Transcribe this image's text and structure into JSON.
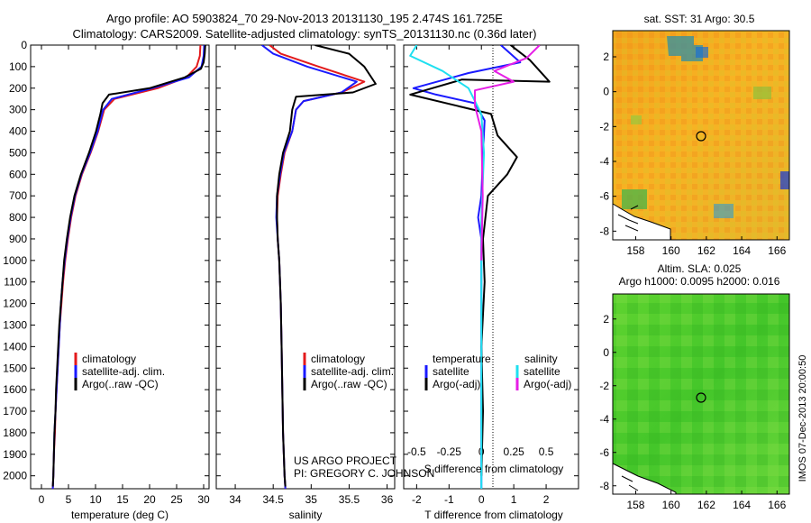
{
  "header": {
    "title_line1": "Argo profile: AO 5903824_70 29-Nov-2013 20131130_195 2.474S 161.725E",
    "title_line2": "Climatology: CARS2009. Satellite-adjusted climatology: synTS_20131130.nc (0.36d later)"
  },
  "colors": {
    "climatology": "#e31a1c",
    "satellite": "#1a1aff",
    "argo": "#000000",
    "sat_salinity": "#1fe0f0",
    "argo_salinity": "#e61ee6"
  },
  "chart_data": [
    {
      "type": "line",
      "id": "temperature",
      "xlabel": "temperature (deg C)",
      "xlim": [
        -2,
        31
      ],
      "xticks": [
        0,
        5,
        10,
        15,
        20,
        25,
        30
      ],
      "ylim": [
        2060,
        0
      ],
      "yticks": [
        0,
        100,
        200,
        300,
        400,
        500,
        600,
        700,
        800,
        900,
        1000,
        1100,
        1200,
        1300,
        1400,
        1500,
        1600,
        1700,
        1800,
        1900,
        2000
      ],
      "legend": [
        "climatology",
        "satellite-adj. clim.",
        "Argo(..raw -QC)"
      ],
      "series": [
        {
          "name": "climatology",
          "color": "#e31a1c",
          "points": [
            [
              29.4,
              0
            ],
            [
              29.3,
              50
            ],
            [
              28.7,
              100
            ],
            [
              26.8,
              150
            ],
            [
              21.5,
              200
            ],
            [
              13.5,
              250
            ],
            [
              11.6,
              300
            ],
            [
              10.5,
              400
            ],
            [
              9.1,
              500
            ],
            [
              7.5,
              600
            ],
            [
              6.3,
              700
            ],
            [
              5.5,
              800
            ],
            [
              4.9,
              900
            ],
            [
              4.4,
              1000
            ],
            [
              4.0,
              1100
            ],
            [
              3.7,
              1200
            ],
            [
              3.4,
              1300
            ],
            [
              3.2,
              1400
            ],
            [
              3.0,
              1500
            ],
            [
              2.8,
              1600
            ],
            [
              2.6,
              1700
            ],
            [
              2.5,
              1800
            ],
            [
              2.3,
              1900
            ],
            [
              2.2,
              2000
            ],
            [
              2.1,
              2060
            ]
          ]
        },
        {
          "name": "satellite-adj. clim.",
          "color": "#1a1aff",
          "points": [
            [
              30.1,
              0
            ],
            [
              30.0,
              50
            ],
            [
              29.6,
              100
            ],
            [
              27.3,
              150
            ],
            [
              20.5,
              200
            ],
            [
              13.0,
              250
            ],
            [
              11.4,
              300
            ],
            [
              10.4,
              400
            ],
            [
              9.0,
              500
            ],
            [
              7.4,
              600
            ],
            [
              6.2,
              700
            ],
            [
              5.4,
              800
            ],
            [
              4.8,
              900
            ],
            [
              4.3,
              1000
            ],
            [
              3.9,
              1100
            ],
            [
              3.6,
              1200
            ],
            [
              3.4,
              1300
            ],
            [
              3.2,
              1400
            ],
            [
              3.0,
              1500
            ],
            [
              2.8,
              1600
            ],
            [
              2.6,
              1700
            ],
            [
              2.4,
              1800
            ],
            [
              2.3,
              1900
            ],
            [
              2.2,
              2000
            ],
            [
              2.1,
              2060
            ]
          ]
        },
        {
          "name": "Argo(..raw -QC)",
          "color": "#000000",
          "points": [
            [
              30.3,
              0
            ],
            [
              30.2,
              40
            ],
            [
              30.0,
              80
            ],
            [
              29.5,
              110
            ],
            [
              26.5,
              150
            ],
            [
              20.0,
              200
            ],
            [
              12.5,
              230
            ],
            [
              11.3,
              270
            ],
            [
              10.9,
              320
            ],
            [
              10.1,
              400
            ],
            [
              8.8,
              500
            ],
            [
              7.3,
              600
            ],
            [
              6.1,
              700
            ],
            [
              5.3,
              800
            ],
            [
              4.7,
              900
            ],
            [
              4.2,
              1000
            ],
            [
              3.9,
              1100
            ],
            [
              3.6,
              1200
            ],
            [
              3.3,
              1300
            ],
            [
              3.1,
              1400
            ],
            [
              2.9,
              1500
            ],
            [
              2.7,
              1600
            ],
            [
              2.6,
              1700
            ],
            [
              2.4,
              1800
            ],
            [
              2.3,
              1900
            ],
            [
              2.2,
              2000
            ],
            [
              2.1,
              2050
            ]
          ]
        }
      ]
    },
    {
      "type": "line",
      "id": "salinity",
      "xlabel": "salinity",
      "xlim": [
        33.75,
        36.1
      ],
      "xticks": [
        34,
        34.5,
        35,
        35.5,
        36
      ],
      "xtick_labels": [
        "34",
        "34.5",
        "35",
        "35.5",
        "36"
      ],
      "ylim": [
        2060,
        0
      ],
      "legend": [
        "climatology",
        "satellite-adj. clim.",
        "Argo(..raw -QC)"
      ],
      "annotation": [
        "US ARGO PROJECT",
        "PI: GREGORY C. JOHNSON"
      ],
      "series": [
        {
          "name": "climatology",
          "color": "#e31a1c",
          "points": [
            [
              34.45,
              0
            ],
            [
              34.6,
              40
            ],
            [
              35.1,
              100
            ],
            [
              35.7,
              170
            ],
            [
              35.4,
              220
            ],
            [
              34.9,
              260
            ],
            [
              34.8,
              300
            ],
            [
              34.75,
              400
            ],
            [
              34.65,
              500
            ],
            [
              34.6,
              600
            ],
            [
              34.56,
              700
            ],
            [
              34.55,
              800
            ],
            [
              34.56,
              900
            ],
            [
              34.58,
              1000
            ],
            [
              34.6,
              1200
            ],
            [
              34.61,
              1400
            ],
            [
              34.62,
              1600
            ],
            [
              34.63,
              1800
            ],
            [
              34.65,
              2000
            ],
            [
              34.66,
              2060
            ]
          ]
        },
        {
          "name": "satellite-adj. clim.",
          "color": "#1a1aff",
          "points": [
            [
              34.35,
              0
            ],
            [
              34.5,
              40
            ],
            [
              34.95,
              100
            ],
            [
              35.6,
              170
            ],
            [
              35.4,
              220
            ],
            [
              34.9,
              260
            ],
            [
              34.8,
              300
            ],
            [
              34.75,
              400
            ],
            [
              34.64,
              500
            ],
            [
              34.59,
              600
            ],
            [
              34.55,
              700
            ],
            [
              34.54,
              800
            ],
            [
              34.56,
              900
            ],
            [
              34.58,
              1000
            ],
            [
              34.6,
              1200
            ],
            [
              34.61,
              1400
            ],
            [
              34.62,
              1600
            ],
            [
              34.63,
              1800
            ],
            [
              34.65,
              2000
            ],
            [
              34.66,
              2060
            ]
          ]
        },
        {
          "name": "Argo(..raw -QC)",
          "color": "#000000",
          "points": [
            [
              35.05,
              0
            ],
            [
              35.5,
              40
            ],
            [
              35.7,
              100
            ],
            [
              35.85,
              180
            ],
            [
              35.55,
              220
            ],
            [
              34.8,
              240
            ],
            [
              34.75,
              300
            ],
            [
              34.72,
              400
            ],
            [
              34.63,
              500
            ],
            [
              34.58,
              600
            ],
            [
              34.55,
              700
            ],
            [
              34.55,
              800
            ],
            [
              34.56,
              900
            ],
            [
              34.58,
              1000
            ],
            [
              34.6,
              1200
            ],
            [
              34.61,
              1400
            ],
            [
              34.62,
              1600
            ],
            [
              34.63,
              1800
            ],
            [
              34.65,
              2000
            ],
            [
              34.66,
              2050
            ]
          ]
        }
      ]
    },
    {
      "type": "line",
      "id": "difference",
      "xlabel_top": "S difference from climatology",
      "xlabel": "T difference from climatology",
      "xlim_T": [
        -2.4,
        3.0
      ],
      "xticks_T": [
        -2,
        -1,
        0,
        1,
        2
      ],
      "xlim_S": [
        -0.6,
        0.75
      ],
      "xticks_S": [
        -0.5,
        -0.25,
        0,
        0.25,
        0.5
      ],
      "xtick_labels_S": [
        "-0.5",
        "-0.25",
        "0",
        "0.25",
        "0.5"
      ],
      "ylim": [
        2060,
        0
      ],
      "legend_temperature": [
        "temperature",
        "satellite",
        "Argo(-adj)"
      ],
      "legend_salinity": [
        "salinity",
        "satellite",
        "Argo(-adj)"
      ],
      "series": [
        {
          "name": "temperature satellite",
          "axis": "T",
          "color": "#1a1aff",
          "points": [
            [
              0.6,
              0
            ],
            [
              1.2,
              80
            ],
            [
              -0.4,
              130
            ],
            [
              -2.1,
              200
            ],
            [
              -1.4,
              230
            ],
            [
              -0.2,
              270
            ],
            [
              0.1,
              350
            ],
            [
              0.05,
              500
            ],
            [
              0.0,
              700
            ],
            [
              -0.1,
              800
            ],
            [
              0.0,
              900
            ],
            [
              0.0,
              1100
            ],
            [
              0.0,
              1400
            ],
            [
              0.0,
              1700
            ],
            [
              0.0,
              2000
            ],
            [
              0.0,
              2060
            ]
          ]
        },
        {
          "name": "temperature Argo(-adj)",
          "axis": "T",
          "color": "#000000",
          "points": [
            [
              0.9,
              0
            ],
            [
              1.5,
              70
            ],
            [
              2.1,
              170
            ],
            [
              -0.6,
              160
            ],
            [
              -2.2,
              230
            ],
            [
              0.3,
              320
            ],
            [
              0.5,
              420
            ],
            [
              1.1,
              520
            ],
            [
              0.8,
              600
            ],
            [
              0.2,
              700
            ],
            [
              0.05,
              900
            ],
            [
              0.1,
              1100
            ],
            [
              0.0,
              1400
            ],
            [
              0.05,
              1700
            ],
            [
              0.0,
              2000
            ]
          ]
        },
        {
          "name": "salinity satellite",
          "axis": "S",
          "color": "#1fe0f0",
          "points": [
            [
              -0.5,
              0
            ],
            [
              -0.55,
              50
            ],
            [
              -0.3,
              120
            ],
            [
              -0.1,
              200
            ],
            [
              0.0,
              320
            ],
            [
              0.02,
              500
            ],
            [
              0.0,
              800
            ],
            [
              0.0,
              1200
            ],
            [
              0.0,
              1600
            ],
            [
              0.0,
              2000
            ],
            [
              0.0,
              2060
            ]
          ]
        },
        {
          "name": "salinity Argo(-adj)",
          "axis": "S",
          "color": "#e61ee6",
          "points": [
            [
              0.45,
              0
            ],
            [
              0.35,
              60
            ],
            [
              0.1,
              120
            ],
            [
              0.25,
              170
            ],
            [
              -0.05,
              210
            ],
            [
              -0.05,
              280
            ],
            [
              0.0,
              400
            ],
            [
              0.01,
              700
            ],
            [
              0.0,
              1000
            ]
          ]
        }
      ]
    }
  ],
  "maps": [
    {
      "id": "sst",
      "title": "sat. SST: 31  Argo: 30.5",
      "xticks": [
        158,
        160,
        162,
        164,
        166
      ],
      "yticks": [
        2,
        0,
        -2,
        -4,
        -6,
        -8
      ],
      "xlim": [
        156.7,
        166.7
      ],
      "ylim": [
        -8.5,
        3.5
      ],
      "marker": [
        161.725,
        -2.474
      ]
    },
    {
      "id": "sla",
      "title_line1": "Altim. SLA: 0.025",
      "title_line2": "Argo h1000: 0.0095 h2000: 0.016",
      "xticks": [
        158,
        160,
        162,
        164,
        166
      ],
      "yticks": [
        2,
        0,
        -2,
        -4,
        -6,
        -8
      ],
      "xlim": [
        156.7,
        166.7
      ],
      "ylim": [
        -8.5,
        3.5
      ],
      "marker": [
        161.725,
        -2.474
      ]
    }
  ],
  "footer": {
    "imos_stamp": "IMOS 07-Dec-2013 20:00:50"
  }
}
